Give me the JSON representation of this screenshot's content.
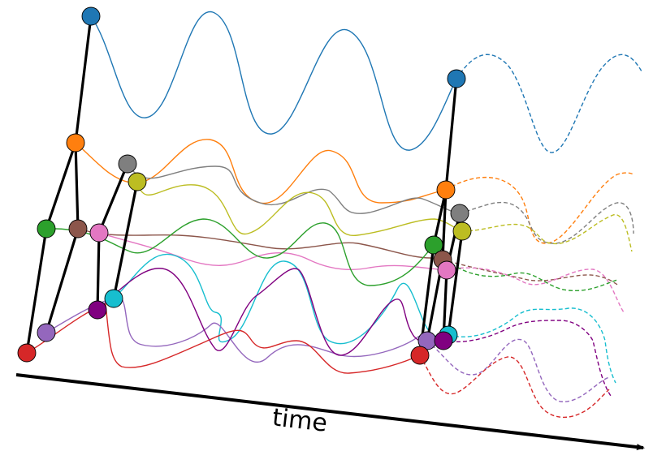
{
  "axis": {
    "label": "time"
  },
  "colors": {
    "blue": "#1f77b4",
    "orange": "#ff7f0e",
    "green": "#2ca02c",
    "brown": "#8c564b",
    "pink": "#e377c2",
    "gray": "#7f7f7f",
    "olive": "#bcbd22",
    "cyan": "#17becf",
    "purple": "#9467bd",
    "violet": "#800080",
    "red": "#d62728",
    "edge": "#000000"
  }
}
